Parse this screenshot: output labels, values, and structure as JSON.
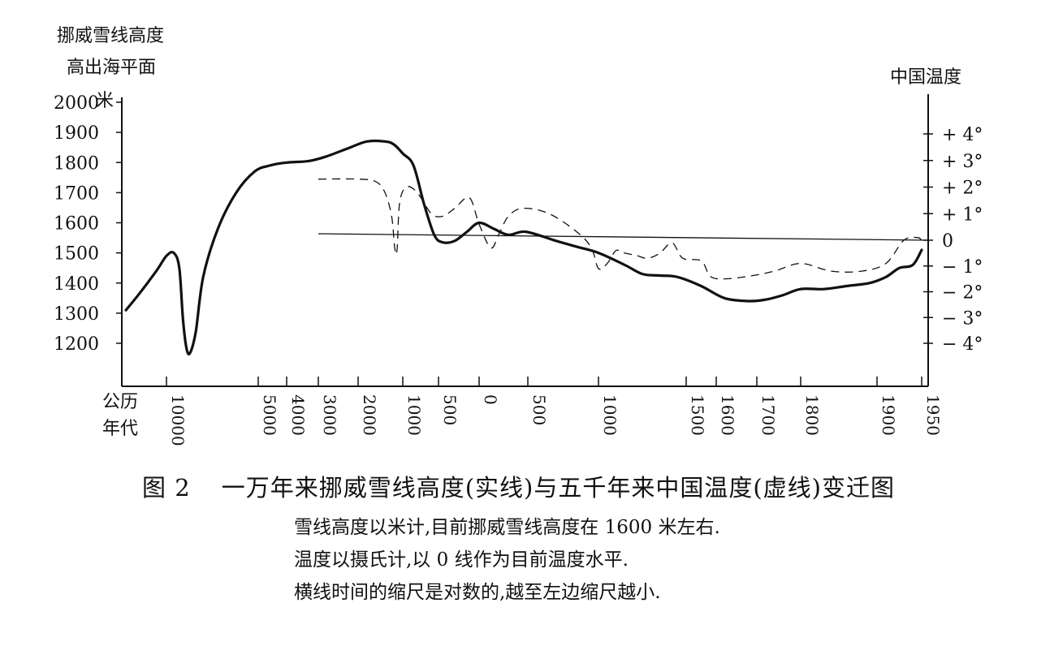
{
  "chart_data": {
    "type": "line",
    "y_left": {
      "label_lines": [
        "挪威雪线高度",
        "高出海平面"
      ],
      "unit": "米",
      "ticks": [
        2000,
        1900,
        1800,
        1700,
        1600,
        1500,
        1400,
        1300,
        1200
      ],
      "range": [
        1100,
        2000
      ]
    },
    "y_right": {
      "label": "中国温度",
      "ticks": [
        "+ 4°",
        "+ 3°",
        "+ 2°",
        "+ 1°",
        "0",
        "− 1°",
        "− 2°",
        "− 3°",
        "− 4°"
      ],
      "tick_values": [
        4,
        3,
        2,
        1,
        0,
        -1,
        -2,
        -3,
        -4
      ],
      "range": [
        -4.4,
        4.9
      ]
    },
    "x": {
      "label_lines": [
        "公历",
        "年代"
      ],
      "scale": "logarithmic (compressed to the left)",
      "ticks": [
        "10000",
        "5000",
        "4000",
        "3000",
        "2000",
        "1000",
        "500",
        "0",
        "500",
        "1000",
        "1500",
        "1600",
        "1700",
        "1800",
        "1900",
        "1950"
      ],
      "tick_years": [
        -10000,
        -5000,
        -4000,
        -3000,
        -2000,
        -1000,
        -500,
        0,
        500,
        1000,
        1500,
        1600,
        1700,
        1800,
        1900,
        1950
      ]
    },
    "series": [
      {
        "style": "solid",
        "axis": "left",
        "x": [
          -11200,
          -10800,
          -10300,
          -10000,
          -9600,
          -9300,
          -9100,
          -8900,
          -8700,
          -8400,
          -8000,
          -7200,
          -6200,
          -5200,
          -4600,
          -4000,
          -3300,
          -2800,
          -2200,
          -1800,
          -1400,
          -1200,
          -1000,
          -850,
          -700,
          -560,
          -450,
          -300,
          -150,
          0,
          150,
          300,
          480,
          700,
          850,
          1000,
          1150,
          1250,
          1350,
          1450,
          1550,
          1620,
          1680,
          1720,
          1760,
          1800,
          1830,
          1860,
          1890,
          1910,
          1925,
          1940,
          1950
        ],
        "y": [
          1310,
          1365,
          1440,
          1490,
          1500,
          1450,
          1280,
          1180,
          1170,
          1240,
          1420,
          1580,
          1700,
          1770,
          1790,
          1800,
          1805,
          1820,
          1850,
          1870,
          1870,
          1860,
          1830,
          1790,
          1660,
          1560,
          1535,
          1540,
          1570,
          1600,
          1580,
          1560,
          1570,
          1540,
          1520,
          1500,
          1460,
          1430,
          1425,
          1420,
          1390,
          1350,
          1340,
          1345,
          1360,
          1380,
          1380,
          1390,
          1400,
          1420,
          1450,
          1460,
          1510
        ]
      },
      {
        "style": "dashed",
        "axis": "right",
        "x": [
          -3000,
          -2000,
          -1600,
          -1400,
          -1250,
          -1180,
          -1130,
          -1070,
          -950,
          -800,
          -600,
          -450,
          -300,
          -120,
          0,
          120,
          200,
          300,
          450,
          650,
          850,
          950,
          1000,
          1050,
          1100,
          1150,
          1220,
          1280,
          1350,
          1420,
          1480,
          1550,
          1580,
          1620,
          1680,
          1740,
          1800,
          1840,
          1880,
          1910,
          1930,
          1945,
          1950
        ],
        "y": [
          2.3,
          2.3,
          2.2,
          1.8,
          0.9,
          -0.3,
          -0.4,
          1.4,
          2.0,
          1.8,
          1.0,
          0.9,
          1.2,
          1.6,
          0.6,
          -0.3,
          0.2,
          0.9,
          1.2,
          1.0,
          0.3,
          -0.3,
          -1.1,
          -0.9,
          -0.4,
          -0.5,
          -0.6,
          -0.7,
          -0.5,
          -0.1,
          -0.7,
          -0.8,
          -1.4,
          -1.5,
          -1.4,
          -1.2,
          -0.9,
          -1.2,
          -1.2,
          -0.9,
          0.0,
          0.1,
          0.0
        ]
      }
    ],
    "caption": {
      "number": "图 2",
      "title": "一万年来挪威雪线高度(实线)与五千年来中国温度(虚线)变迁图"
    },
    "notes": [
      "雪线高度以米计,目前挪威雪线高度在 1600 米左右.",
      "温度以摄氏计,以 0 线作为目前温度水平.",
      "横线时间的缩尺是对数的,越至左边缩尺越小."
    ],
    "colors": {
      "ink": "#111111",
      "background": "#ffffff"
    }
  }
}
